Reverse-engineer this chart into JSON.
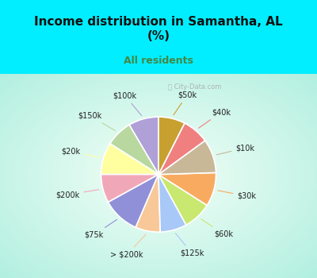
{
  "title": "Income distribution in Samantha, AL\n(%)",
  "subtitle": "All residents",
  "title_color": "#111111",
  "subtitle_color": "#448844",
  "background_cyan": "#00eeff",
  "background_chart_edge": "#a0f0e0",
  "background_chart_center": "#f0fff8",
  "labels": [
    "$100k",
    "$150k",
    "$20k",
    "$200k",
    "$75k",
    "> $200k",
    "$125k",
    "$60k",
    "$30k",
    "$10k",
    "$40k",
    "$50k"
  ],
  "values": [
    8.5,
    7.5,
    9.0,
    8.0,
    10.5,
    7.0,
    7.5,
    8.0,
    9.5,
    9.5,
    7.5,
    7.5
  ],
  "colors": [
    "#b0a0d8",
    "#b8d8a0",
    "#ffffa0",
    "#f0a8b8",
    "#9090d8",
    "#f8c898",
    "#a8c8f8",
    "#c8e870",
    "#f8aa60",
    "#c8b898",
    "#f08080",
    "#c8a030"
  ],
  "wedge_edge_color": "#ffffff",
  "label_fontsize": 7.0,
  "label_color": "#222222",
  "watermark": "City-Data.com"
}
